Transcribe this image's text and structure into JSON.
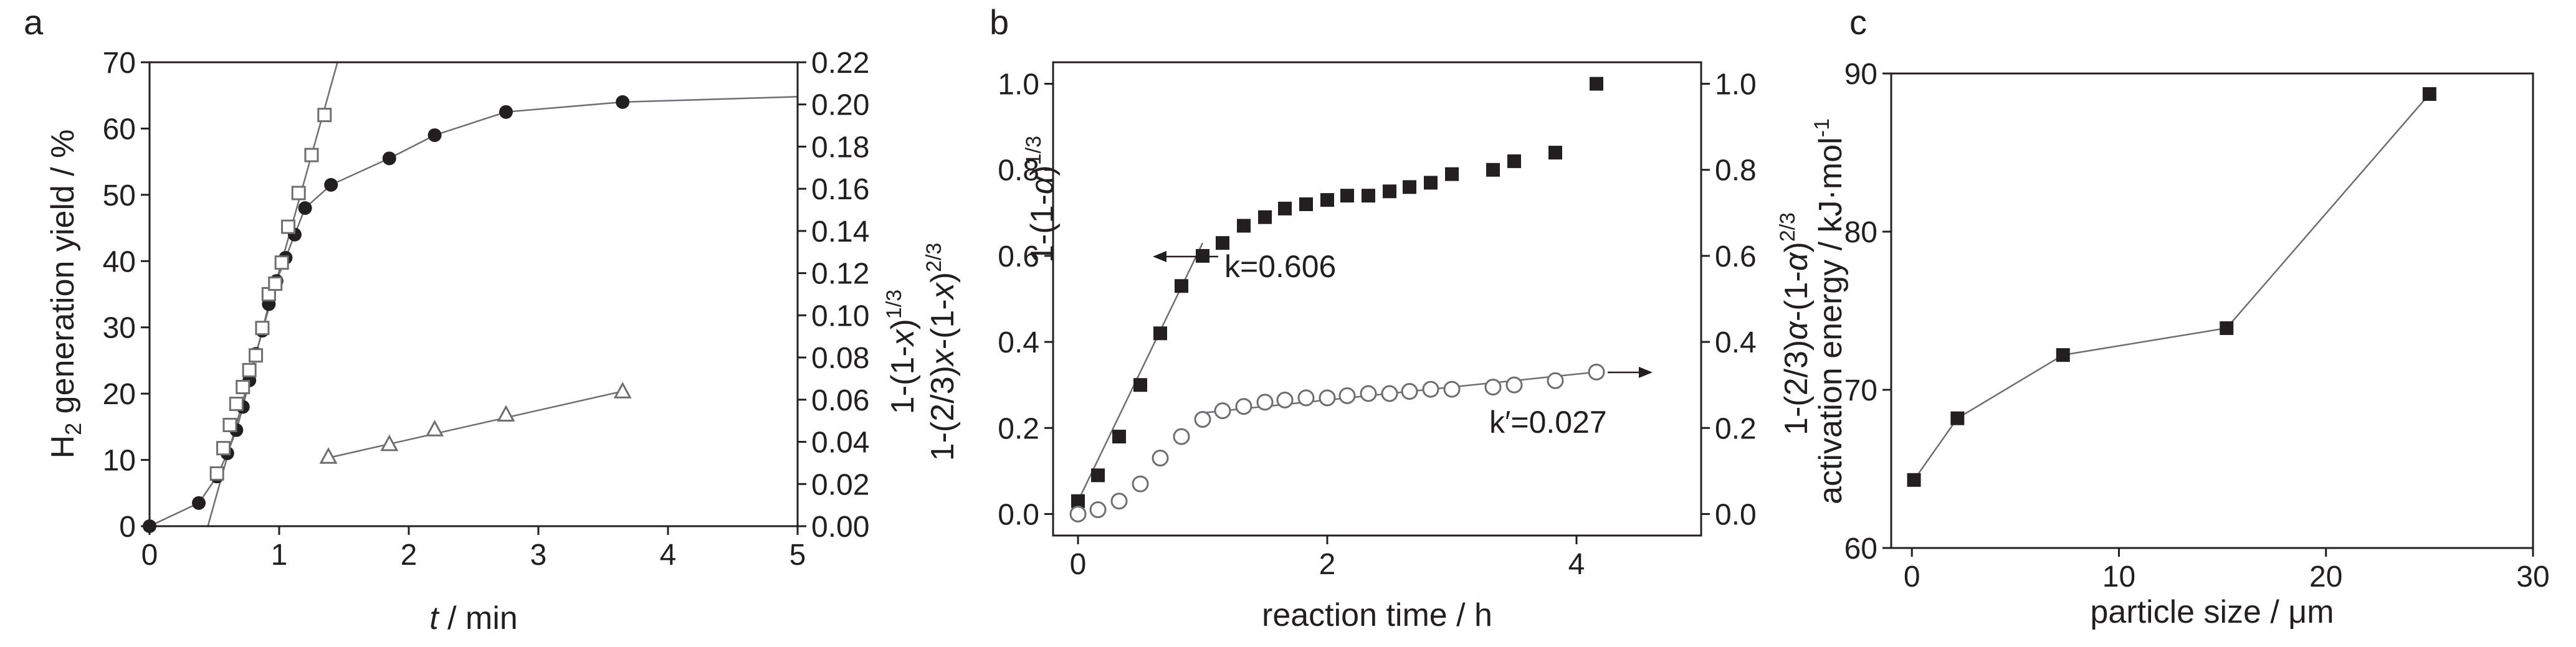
{
  "chart_data": [
    {
      "panel": "a",
      "type": "scatter",
      "xlabel": "t / min",
      "ylabel": "H2 generation yield / %",
      "y2label_lines": [
        "1-(1-x)1/3",
        "1-(2/3)x-(1-x)2/3"
      ],
      "xlim": [
        0,
        5
      ],
      "ylim": [
        0,
        70
      ],
      "y2lim": [
        0.0,
        0.22
      ],
      "xticks": [
        "0",
        "1",
        "2",
        "3",
        "4",
        "5"
      ],
      "yticks": [
        "0",
        "10",
        "20",
        "30",
        "40",
        "50",
        "60",
        "70"
      ],
      "y2ticks": [
        "0.00",
        "0.02",
        "0.04",
        "0.06",
        "0.08",
        "0.10",
        "0.12",
        "0.14",
        "0.16",
        "0.18",
        "0.20",
        "0.22"
      ],
      "series": [
        {
          "marker": "filled-circle",
          "axis": "left",
          "x": [
            0,
            0.38,
            0.52,
            0.6,
            0.67,
            0.72,
            0.77,
            0.82,
            0.87,
            0.92,
            0.98,
            1.05,
            1.12,
            1.2,
            1.4,
            1.85,
            2.2,
            2.75,
            3.65
          ],
          "y": [
            0,
            3.5,
            7.5,
            11,
            14.5,
            18,
            22,
            26,
            29.5,
            33.5,
            37,
            40.5,
            44,
            48,
            51.5,
            55.5,
            59,
            62.5,
            64
          ]
        },
        {
          "marker": "open-square",
          "axis": "right",
          "x": [
            0.52,
            0.57,
            0.62,
            0.67,
            0.72,
            0.77,
            0.82,
            0.87,
            0.92,
            0.97,
            1.02,
            1.07,
            1.15,
            1.25,
            1.35
          ],
          "y": [
            0.025,
            0.037,
            0.048,
            0.058,
            0.066,
            0.074,
            0.081,
            0.094,
            0.11,
            0.115,
            0.125,
            0.142,
            0.158,
            0.176,
            0.195
          ]
        },
        {
          "marker": "open-triangle",
          "axis": "right",
          "x": [
            1.38,
            1.85,
            2.2,
            2.75,
            3.65
          ],
          "y": [
            0.033,
            0.039,
            0.046,
            0.053,
            0.064
          ]
        }
      ],
      "fit_lines": [
        {
          "axis": "right",
          "x": [
            0.45,
            1.45
          ],
          "y": [
            0.0,
            0.22
          ]
        },
        {
          "axis": "right",
          "x": [
            1.35,
            3.65
          ],
          "y": [
            0.032,
            0.064
          ]
        }
      ],
      "trend_line": {
        "axis": "left",
        "x": [
          0,
          0.38,
          0.52,
          0.6,
          0.67,
          0.72,
          0.77,
          0.82,
          0.87,
          0.92,
          0.98,
          1.05,
          1.12,
          1.2,
          1.4,
          1.85,
          2.2,
          2.75,
          3.65,
          5.0
        ],
        "y": [
          0,
          3.5,
          7.5,
          11,
          14.5,
          18,
          22,
          26,
          29.5,
          33.5,
          37,
          40.5,
          44,
          48,
          51.5,
          55.5,
          59,
          62.5,
          64,
          64.8
        ]
      }
    },
    {
      "panel": "b",
      "type": "scatter",
      "xlabel": "reaction time / h",
      "ylabel_lines": [
        "1-(1-α)1/3"
      ],
      "y2label_lines": [
        "1-(2/3)α-(1-α)2/3"
      ],
      "xlim": [
        -0.2,
        5
      ],
      "ylim": [
        -0.05,
        1.05
      ],
      "xticks": [
        "0",
        "2",
        "4"
      ],
      "yticks": [
        "0.0",
        "0.2",
        "0.4",
        "0.6",
        "0.8",
        "1.0"
      ],
      "y2ticks": [
        "0.0",
        "0.2",
        "0.4",
        "0.6",
        "0.8",
        "1.0"
      ],
      "series": [
        {
          "marker": "filled-square",
          "axis": "left",
          "x": [
            0,
            0.16,
            0.33,
            0.5,
            0.66,
            0.83,
            1.0,
            1.16,
            1.33,
            1.5,
            1.66,
            1.83,
            2.0,
            2.16,
            2.33,
            2.5,
            2.66,
            2.83,
            3.0,
            3.33,
            3.5,
            3.83,
            4.16
          ],
          "y": [
            0.03,
            0.09,
            0.18,
            0.3,
            0.42,
            0.53,
            0.6,
            0.63,
            0.67,
            0.69,
            0.71,
            0.72,
            0.73,
            0.74,
            0.74,
            0.75,
            0.76,
            0.77,
            0.79,
            0.8,
            0.82,
            0.84,
            1.0
          ]
        },
        {
          "marker": "open-circle",
          "axis": "right",
          "x": [
            0,
            0.16,
            0.33,
            0.5,
            0.66,
            0.83,
            1.0,
            1.16,
            1.33,
            1.5,
            1.66,
            1.83,
            2.0,
            2.16,
            2.33,
            2.5,
            2.66,
            2.83,
            3.0,
            3.33,
            3.5,
            3.83,
            4.16
          ],
          "y": [
            0.0,
            0.01,
            0.03,
            0.07,
            0.13,
            0.18,
            0.22,
            0.24,
            0.25,
            0.26,
            0.265,
            0.27,
            0.27,
            0.275,
            0.28,
            0.28,
            0.285,
            0.29,
            0.29,
            0.295,
            0.3,
            0.31,
            0.33
          ]
        }
      ],
      "fit_lines": [
        {
          "axis": "left",
          "x": [
            0,
            1.0
          ],
          "y": [
            0.03,
            0.63
          ]
        },
        {
          "axis": "right",
          "x": [
            1.0,
            4.16
          ],
          "y": [
            0.235,
            0.33
          ]
        }
      ],
      "annotations": [
        "k=0.606",
        "k′=0.027"
      ]
    },
    {
      "panel": "c",
      "type": "line",
      "xlabel": "particle size / μm",
      "ylabel": "activation energy / kJ·mol-1",
      "xlim": [
        -1,
        30
      ],
      "ylim": [
        60,
        90
      ],
      "xticks": [
        "0",
        "10",
        "20",
        "30"
      ],
      "yticks": [
        "60",
        "70",
        "80",
        "90"
      ],
      "series": [
        {
          "marker": "filled-square",
          "x": [
            0.1,
            2.2,
            7.3,
            15.2,
            25
          ],
          "y": [
            64.3,
            68.2,
            72.2,
            73.9,
            88.7
          ]
        }
      ]
    }
  ]
}
